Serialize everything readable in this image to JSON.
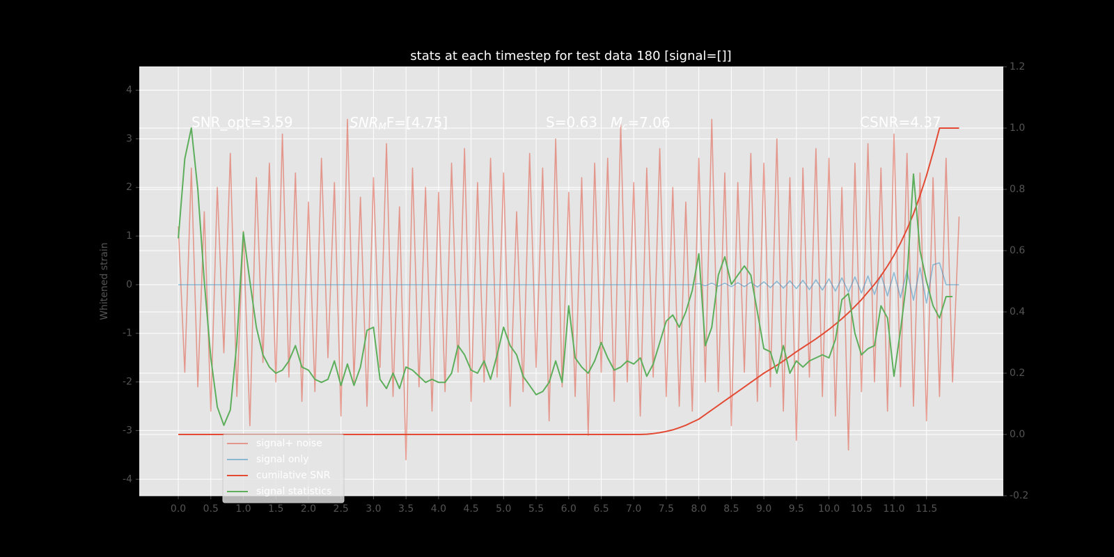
{
  "chart_data": {
    "type": "line",
    "title": "stats at each timestep for test data 180 [signal=[]]",
    "ylabel": "Whitened strain",
    "annotations": [
      {
        "text": "SNR_opt=3.59"
      },
      {
        "base": "SNR",
        "sub": "M",
        "tail": "F=[4.75]"
      },
      {
        "text": "S=0.63"
      },
      {
        "base": "M",
        "sub": "c",
        "tail": "=7.06"
      },
      {
        "text": "CSNR=4.37"
      }
    ],
    "grid": true,
    "legend": "lower left",
    "xlim": [
      -0.6,
      12.68
    ],
    "ylim": [
      -4.34,
      4.48
    ],
    "y2lim": [
      -0.2,
      1.2
    ],
    "xticks": [
      {
        "value": 0,
        "label": "0.0"
      },
      0.5,
      {
        "value": 1,
        "label": "1.0"
      },
      1.5,
      {
        "value": 2,
        "label": "2.0"
      },
      2.5,
      {
        "value": 3,
        "label": "3.0"
      },
      3.5,
      {
        "value": 4,
        "label": "4.0"
      },
      4.5,
      {
        "value": 5,
        "label": "5.0"
      },
      5.5,
      {
        "value": 6,
        "label": "6.0"
      },
      6.5,
      {
        "value": 7,
        "label": "7.0"
      },
      7.5,
      {
        "value": 8,
        "label": "8.0"
      },
      8.5,
      {
        "value": 9,
        "label": "9.0"
      },
      9.5,
      {
        "value": 10,
        "label": "10.0"
      },
      10.5,
      {
        "value": 11,
        "label": "11.0"
      },
      11.5
    ],
    "yticks": [
      -4,
      -3,
      -2,
      -1,
      0,
      1,
      2,
      3,
      4
    ],
    "y2ticks": [
      -0.2,
      {
        "value": 0,
        "label": "0.0"
      },
      0.2,
      0.4,
      0.6,
      0.8,
      {
        "value": 1,
        "label": "1.0"
      },
      1.2
    ],
    "x": [
      0,
      0.1,
      0.2,
      0.3,
      0.4,
      0.5,
      0.6,
      0.7,
      0.8,
      0.9,
      1,
      1.1,
      1.2,
      1.3,
      1.4,
      1.5,
      1.6,
      1.7,
      1.8,
      1.9,
      2,
      2.1,
      2.2,
      2.3,
      2.4,
      2.5,
      2.6,
      2.7,
      2.8,
      2.9,
      3,
      3.1,
      3.2,
      3.3,
      3.4,
      3.5,
      3.6,
      3.7,
      3.8,
      3.9,
      4,
      4.1,
      4.2,
      4.3,
      4.4,
      4.5,
      4.6,
      4.7,
      4.8,
      4.9,
      5,
      5.1,
      5.2,
      5.3,
      5.4,
      5.5,
      5.6,
      5.7,
      5.8,
      5.9,
      6,
      6.1,
      6.2,
      6.3,
      6.4,
      6.5,
      6.6,
      6.7,
      6.8,
      6.9,
      7,
      7.1,
      7.2,
      7.3,
      7.4,
      7.5,
      7.6,
      7.7,
      7.8,
      7.9,
      8,
      8.1,
      8.2,
      8.3,
      8.4,
      8.5,
      8.6,
      8.7,
      8.8,
      8.9,
      9,
      9.1,
      9.2,
      9.3,
      9.4,
      9.5,
      9.6,
      9.7,
      9.8,
      9.9,
      10,
      10.1,
      10.2,
      10.3,
      10.4,
      10.5,
      10.6,
      10.7,
      10.8,
      10.9,
      11,
      11.1,
      11.2,
      11.3,
      11.4,
      11.5,
      11.6,
      11.7,
      11.8,
      11.9,
      12
    ],
    "series": [
      {
        "name": "signal+ noise",
        "color": "#E24A33",
        "opacity": 0.5,
        "axis": "y",
        "values": [
          1.2,
          -1.8,
          2.4,
          -2.1,
          1.5,
          -2.6,
          2.0,
          -1.4,
          2.7,
          -2.3,
          1.1,
          -2.9,
          2.2,
          -1.6,
          2.5,
          -2.0,
          3.1,
          -1.9,
          2.3,
          -2.4,
          1.7,
          -2.2,
          2.6,
          -1.5,
          2.1,
          -2.7,
          3.4,
          -2.0,
          1.8,
          -2.5,
          2.2,
          -1.7,
          2.9,
          -2.3,
          1.6,
          -3.6,
          2.4,
          -2.1,
          2.0,
          -2.6,
          1.9,
          -2.2,
          2.5,
          -1.8,
          2.8,
          -2.4,
          2.1,
          -2.0,
          2.6,
          -1.9,
          2.3,
          -2.5,
          1.5,
          -2.2,
          2.7,
          -1.7,
          2.4,
          -2.8,
          3.0,
          -2.1,
          1.9,
          -2.3,
          2.2,
          -3.1,
          2.5,
          -1.8,
          2.6,
          -2.4,
          3.3,
          -2.0,
          2.1,
          -2.7,
          2.4,
          -1.9,
          2.8,
          -2.3,
          2.0,
          -2.5,
          1.7,
          -2.6,
          2.6,
          -2.0,
          3.4,
          -2.2,
          2.3,
          -2.9,
          2.1,
          -1.8,
          2.7,
          -2.4,
          2.5,
          -2.1,
          3.0,
          -2.6,
          2.2,
          -3.2,
          2.4,
          -1.9,
          2.8,
          -2.3,
          2.6,
          -2.7,
          2.0,
          -3.4,
          2.5,
          -2.2,
          2.9,
          -2.0,
          2.4,
          -2.6,
          3.1,
          -2.1,
          2.7,
          -2.5,
          2.3,
          -2.8,
          2.2,
          -2.3,
          2.6,
          -2.0,
          1.4
        ]
      },
      {
        "name": "signal only",
        "color": "#348ABD",
        "opacity": 0.5,
        "axis": "y",
        "values": [
          0,
          0,
          0,
          0,
          0,
          0,
          0,
          0,
          0,
          0,
          0,
          0,
          0,
          0,
          0,
          0,
          0,
          0,
          0,
          0,
          0,
          0,
          0,
          0,
          0,
          0,
          0,
          0,
          0,
          0,
          0,
          0,
          0,
          0,
          0,
          0,
          0,
          0,
          0,
          0,
          0,
          0,
          0,
          0,
          0,
          0,
          0,
          0,
          0,
          0,
          0,
          0,
          0,
          0,
          0,
          0,
          0,
          0,
          0,
          0,
          0,
          0,
          0,
          0,
          0,
          0,
          0,
          0,
          0,
          0,
          0,
          0,
          0,
          0,
          0,
          0,
          0,
          0,
          0,
          0,
          0.02,
          -0.02,
          0.03,
          -0.03,
          0.03,
          -0.04,
          0.04,
          -0.04,
          0.05,
          -0.05,
          0.06,
          -0.06,
          0.07,
          -0.07,
          0.08,
          -0.08,
          0.09,
          -0.1,
          0.1,
          -0.11,
          0.12,
          -0.13,
          0.14,
          -0.15,
          0.16,
          -0.17,
          0.18,
          -0.2,
          0.21,
          -0.23,
          0.25,
          -0.27,
          0.29,
          -0.32,
          0.35,
          -0.38,
          0.41,
          0.45,
          0,
          0,
          0
        ]
      },
      {
        "name": "cumilative SNR",
        "color": "#E24A33",
        "opacity": 1,
        "axis": "y2",
        "values": [
          0,
          0,
          0,
          0,
          0,
          0,
          0,
          0,
          0,
          0,
          0,
          0,
          0,
          0,
          0,
          0,
          0,
          0,
          0,
          0,
          0,
          0,
          0,
          0,
          0,
          0,
          0,
          0,
          0,
          0,
          0,
          0,
          0,
          0,
          0,
          0,
          0,
          0,
          0,
          0,
          0,
          0,
          0,
          0,
          0,
          0,
          0,
          0,
          0,
          0,
          0,
          0,
          0,
          0,
          0,
          0,
          0,
          0,
          0,
          0,
          0,
          0,
          0,
          0,
          0,
          0,
          0,
          0,
          0,
          0,
          0,
          0,
          0.001,
          0.003,
          0.006,
          0.01,
          0.015,
          0.022,
          0.03,
          0.04,
          0.05,
          0.065,
          0.08,
          0.095,
          0.11,
          0.125,
          0.14,
          0.155,
          0.17,
          0.185,
          0.2,
          0.213,
          0.226,
          0.24,
          0.255,
          0.27,
          0.284,
          0.298,
          0.312,
          0.327,
          0.343,
          0.36,
          0.378,
          0.397,
          0.418,
          0.44,
          0.465,
          0.49,
          0.518,
          0.55,
          0.585,
          0.625,
          0.67,
          0.72,
          0.78,
          0.845,
          0.92,
          1.0,
          1.0,
          1.0,
          1.0
        ]
      },
      {
        "name": "signal statistics",
        "color": "#5DAE5B",
        "opacity": 1,
        "axis": "y2",
        "values": [
          0.64,
          0.9,
          1.0,
          0.8,
          0.5,
          0.25,
          0.09,
          0.03,
          0.08,
          0.3,
          0.66,
          0.5,
          0.35,
          0.26,
          0.22,
          0.2,
          0.21,
          0.24,
          0.29,
          0.22,
          0.21,
          0.18,
          0.17,
          0.18,
          0.24,
          0.16,
          0.23,
          0.16,
          0.22,
          0.34,
          0.35,
          0.18,
          0.15,
          0.2,
          0.15,
          0.22,
          0.21,
          0.19,
          0.17,
          0.18,
          0.17,
          0.17,
          0.2,
          0.29,
          0.26,
          0.21,
          0.2,
          0.24,
          0.18,
          0.26,
          0.35,
          0.29,
          0.26,
          0.19,
          0.16,
          0.13,
          0.14,
          0.17,
          0.24,
          0.17,
          0.42,
          0.25,
          0.22,
          0.2,
          0.24,
          0.3,
          0.25,
          0.21,
          0.22,
          0.24,
          0.23,
          0.25,
          0.19,
          0.23,
          0.3,
          0.37,
          0.39,
          0.35,
          0.4,
          0.47,
          0.59,
          0.29,
          0.35,
          0.52,
          0.58,
          0.49,
          0.52,
          0.55,
          0.52,
          0.4,
          0.28,
          0.27,
          0.2,
          0.29,
          0.2,
          0.24,
          0.22,
          0.24,
          0.25,
          0.26,
          0.25,
          0.31,
          0.44,
          0.46,
          0.33,
          0.26,
          0.28,
          0.29,
          0.42,
          0.38,
          0.19,
          0.34,
          0.51,
          0.85,
          0.6,
          0.5,
          0.42,
          0.38,
          0.45,
          0.45,
          null
        ]
      }
    ]
  }
}
